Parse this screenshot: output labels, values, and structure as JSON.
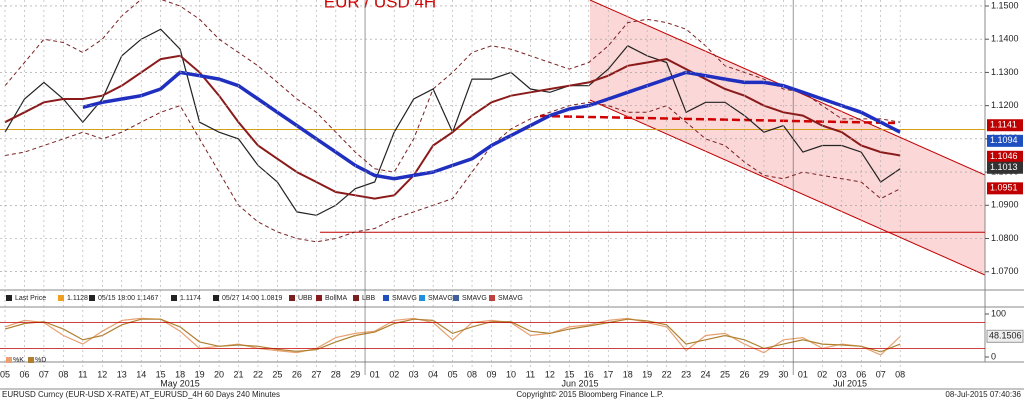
{
  "chart_data": [
    {
      "type": "line",
      "title": "EUR / USD 4H",
      "categories": [
        "05",
        "06",
        "07",
        "08",
        "11",
        "12",
        "13",
        "14",
        "15",
        "18",
        "19",
        "20",
        "21",
        "22",
        "25",
        "26",
        "27",
        "28",
        "29",
        "01",
        "02",
        "03",
        "04",
        "05",
        "08",
        "09",
        "10",
        "11",
        "12",
        "15",
        "16",
        "17",
        "18",
        "19",
        "22",
        "23",
        "24",
        "25",
        "26",
        "29",
        "30",
        "01",
        "02",
        "03",
        "06",
        "07",
        "08"
      ],
      "month_labels": [
        "May 2015",
        "Jun 2015",
        "Jul 2015"
      ],
      "series": [
        {
          "name": "UBB",
          "color": "#7a1f1f",
          "dashed": true,
          "width": 1,
          "values": [
            1.126,
            1.133,
            1.14,
            1.139,
            1.136,
            1.14,
            1.147,
            1.152,
            1.152,
            1.15,
            1.146,
            1.14,
            1.136,
            1.132,
            1.127,
            1.122,
            1.118,
            1.112,
            1.106,
            1.101,
            1.1,
            1.11,
            1.125,
            1.13,
            1.136,
            1.138,
            1.137,
            1.135,
            1.133,
            1.131,
            1.133,
            1.138,
            1.145,
            1.146,
            1.145,
            1.143,
            1.138,
            1.132,
            1.13,
            1.128,
            1.125,
            1.124,
            1.12,
            1.116,
            1.116,
            1.116,
            1.115
          ]
        },
        {
          "name": "LBB",
          "color": "#7a1f1f",
          "dashed": true,
          "width": 1,
          "values": [
            1.105,
            1.106,
            1.108,
            1.11,
            1.112,
            1.11,
            1.112,
            1.115,
            1.118,
            1.12,
            1.11,
            1.1,
            1.09,
            1.085,
            1.082,
            1.08,
            1.079,
            1.08,
            1.082,
            1.083,
            1.086,
            1.088,
            1.09,
            1.092,
            1.1,
            1.108,
            1.113,
            1.116,
            1.118,
            1.12,
            1.121,
            1.12,
            1.118,
            1.118,
            1.12,
            1.115,
            1.11,
            1.108,
            1.103,
            1.099,
            1.098,
            1.1,
            1.099,
            1.098,
            1.097,
            1.092,
            1.095
          ]
        },
        {
          "name": "Last Price",
          "color": "#222222",
          "dashed": false,
          "width": 1.2,
          "values": [
            1.112,
            1.122,
            1.127,
            1.122,
            1.115,
            1.122,
            1.135,
            1.14,
            1.143,
            1.137,
            1.115,
            1.112,
            1.11,
            1.102,
            1.097,
            1.088,
            1.087,
            1.09,
            1.095,
            1.097,
            1.112,
            1.122,
            1.125,
            1.112,
            1.128,
            1.128,
            1.13,
            1.125,
            1.124,
            1.126,
            1.126,
            1.131,
            1.138,
            1.135,
            1.133,
            1.118,
            1.121,
            1.121,
            1.117,
            1.112,
            1.114,
            1.106,
            1.108,
            1.108,
            1.106,
            1.097,
            1.101
          ]
        },
        {
          "name": "BollMA",
          "color": "#8b1a1a",
          "dashed": false,
          "width": 2,
          "values": [
            1.115,
            1.118,
            1.121,
            1.122,
            1.122,
            1.123,
            1.126,
            1.13,
            1.134,
            1.135,
            1.13,
            1.123,
            1.115,
            1.108,
            1.104,
            1.1,
            1.097,
            1.094,
            1.093,
            1.092,
            1.093,
            1.099,
            1.108,
            1.112,
            1.117,
            1.121,
            1.123,
            1.124,
            1.125,
            1.126,
            1.127,
            1.129,
            1.132,
            1.133,
            1.134,
            1.131,
            1.128,
            1.125,
            1.123,
            1.12,
            1.118,
            1.117,
            1.114,
            1.112,
            1.108,
            1.106,
            1.105
          ]
        },
        {
          "name": "SMAVG",
          "color": "#1f2fbf",
          "dashed": false,
          "width": 3.5,
          "values": [
            null,
            null,
            null,
            null,
            1.1195,
            1.121,
            1.122,
            1.123,
            1.125,
            1.13,
            1.129,
            1.128,
            1.126,
            1.122,
            1.118,
            1.114,
            1.11,
            1.106,
            1.102,
            1.099,
            1.098,
            1.099,
            1.1,
            1.102,
            1.104,
            1.108,
            1.111,
            1.114,
            1.117,
            1.119,
            1.12,
            1.122,
            1.124,
            1.126,
            1.128,
            1.13,
            1.129,
            1.128,
            1.127,
            1.127,
            1.126,
            1.124,
            1.122,
            1.12,
            1.118,
            1.115,
            1.112
          ]
        }
      ],
      "legend": [
        "Last Price",
        "1.1128",
        "05/15 18:00 1.1467",
        "1.1174",
        "05/27 14:00 1.0819",
        "UBB",
        "BollMA",
        "LBB",
        "SMAVG",
        "SMAVG",
        "SMAVG",
        "SMAVG"
      ],
      "hlines": [
        {
          "value": 1.1128,
          "color": "#d4a017"
        },
        {
          "value": 1.0819,
          "color": "#c00000"
        }
      ],
      "last_values": [
        {
          "value": 1.1141,
          "color": "#c00000"
        },
        {
          "value": 1.1094,
          "color": "#1f4fbf"
        },
        {
          "value": 1.1046,
          "color": "#c00000"
        },
        {
          "value": 1.1013,
          "color": "#333333"
        },
        {
          "value": 1.0951,
          "color": "#c00000"
        }
      ],
      "ylim": [
        1.0645,
        1.1518
      ],
      "yticks": [
        {
          "value": 1.15,
          "label": "1.1500"
        },
        {
          "value": 1.14,
          "label": "1.1400"
        },
        {
          "value": 1.13,
          "label": "1.1300"
        },
        {
          "value": 1.12,
          "label": "1.1200"
        },
        {
          "value": 1.11,
          "label": "1.1100"
        },
        {
          "value": 1.1,
          "label": "1.1000"
        },
        {
          "value": 1.09,
          "label": "1.0900"
        },
        {
          "value": 1.08,
          "label": "1.0800"
        },
        {
          "value": 1.07,
          "label": "1.0700"
        }
      ],
      "grid": true
    },
    {
      "type": "line",
      "series": [
        {
          "name": "%K",
          "color": "#e8a070",
          "values": [
            70,
            85,
            80,
            50,
            30,
            60,
            85,
            90,
            88,
            60,
            20,
            25,
            30,
            20,
            15,
            10,
            20,
            45,
            55,
            60,
            85,
            90,
            80,
            40,
            80,
            85,
            80,
            50,
            55,
            70,
            75,
            85,
            90,
            80,
            70,
            15,
            50,
            55,
            30,
            10,
            40,
            45,
            20,
            30,
            25,
            5,
            48
          ]
        },
        {
          "name": "%D",
          "color": "#b08030",
          "values": [
            65,
            78,
            82,
            65,
            40,
            50,
            75,
            88,
            88,
            70,
            35,
            25,
            28,
            25,
            18,
            13,
            17,
            35,
            50,
            58,
            78,
            88,
            85,
            55,
            70,
            82,
            82,
            60,
            55,
            65,
            72,
            80,
            88,
            84,
            75,
            30,
            40,
            50,
            40,
            20,
            30,
            40,
            30,
            28,
            25,
            12,
            30
          ]
        }
      ],
      "levels": [
        80,
        20
      ],
      "last_value": 48.1506,
      "ylim": [
        0,
        100
      ],
      "yticks": [
        100,
        0
      ]
    }
  ],
  "footer": {
    "left": "EURUSD Curncy (EUR-USD X-RATE) AT_EURUSD_4H 60 Days 240 Minutes",
    "center": "Copyright© 2015 Bloomberg Finance L.P.",
    "right": "08-Jul-2015 07:40:36"
  }
}
